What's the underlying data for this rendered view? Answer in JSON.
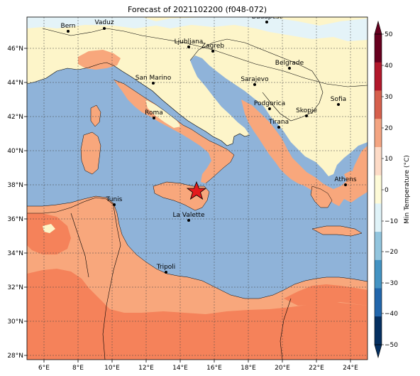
{
  "title": "Forecast of 2021102200 (f048-072)",
  "colorbar": {
    "label": "Min Temperature (°C)",
    "ticks": [
      "50",
      "40",
      "30",
      "20",
      "10",
      "0",
      "−10",
      "−20",
      "−30",
      "−40",
      "−50"
    ],
    "colors": [
      "#67001f",
      "#b2182b",
      "#d6604d",
      "#f4a582",
      "#fddbc7",
      "#fefbd8",
      "#e0f3f8",
      "#92c5de",
      "#4393c3",
      "#2166ac",
      "#053061"
    ]
  },
  "axes": {
    "lon_ticks": [
      "6°E",
      "8°E",
      "10°E",
      "12°E",
      "14°E",
      "16°E",
      "18°E",
      "20°E",
      "22°E",
      "24°E"
    ],
    "lat_ticks": [
      "46°N",
      "44°N",
      "42°N",
      "40°N",
      "38°N",
      "36°N",
      "34°N",
      "32°N",
      "30°N",
      "28°N"
    ]
  },
  "cities": [
    {
      "name": "Bern"
    },
    {
      "name": "Vaduz"
    },
    {
      "name": "Budapest"
    },
    {
      "name": "Ljubljana"
    },
    {
      "name": "Zagreb"
    },
    {
      "name": "Belgrade"
    },
    {
      "name": "San Marino"
    },
    {
      "name": "Sarajevo"
    },
    {
      "name": "Sofia"
    },
    {
      "name": "Podgorica"
    },
    {
      "name": "Skopje"
    },
    {
      "name": "Roma"
    },
    {
      "name": "Tirana"
    },
    {
      "name": "Athens"
    },
    {
      "name": "Tunis"
    },
    {
      "name": "La Valette"
    },
    {
      "name": "Tripoli"
    }
  ],
  "colors": {
    "sea": "#8fb3d9",
    "warm": "#f8a77c",
    "hot": "#f5825a",
    "mild": "#fdf5c9",
    "cool": "#e4f3f8"
  }
}
